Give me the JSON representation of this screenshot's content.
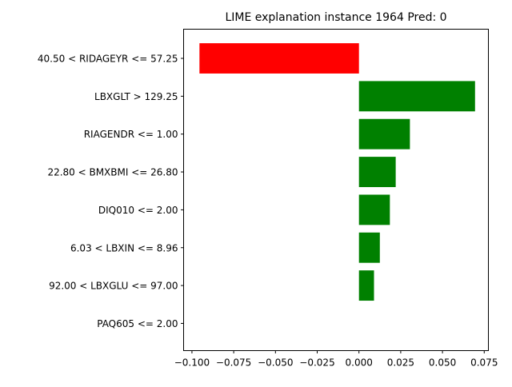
{
  "chart_data": {
    "type": "bar",
    "orientation": "horizontal",
    "title": "LIME explanation instance 1964 Pred: 0",
    "xlabel": "",
    "ylabel": "",
    "xlim": [
      -0.105,
      0.0775
    ],
    "grid": false,
    "legend": "none",
    "categories": [
      "40.50 < RIDAGEYR <= 57.25",
      "LBXGLT > 129.25",
      "RIAGENDR <= 1.00",
      "22.80 < BMXBMI <= 26.80",
      "DIQ010 <= 2.00",
      "6.03 < LBXIN <= 8.96",
      "92.00 < LBXGLU <= 97.00",
      "PAQ605 <= 2.00"
    ],
    "values": [
      -0.0955,
      0.0695,
      0.0305,
      0.022,
      0.0185,
      0.0125,
      0.009,
      0.0
    ],
    "colors": {
      "negative": "#ff0000",
      "positive": "#008000"
    },
    "x_ticks": [
      -0.1,
      -0.075,
      -0.05,
      -0.025,
      0.0,
      0.025,
      0.05,
      0.075
    ],
    "x_tick_labels": [
      "−0.100",
      "−0.075",
      "−0.050",
      "−0.025",
      "0.000",
      "0.025",
      "0.050",
      "0.075"
    ]
  }
}
